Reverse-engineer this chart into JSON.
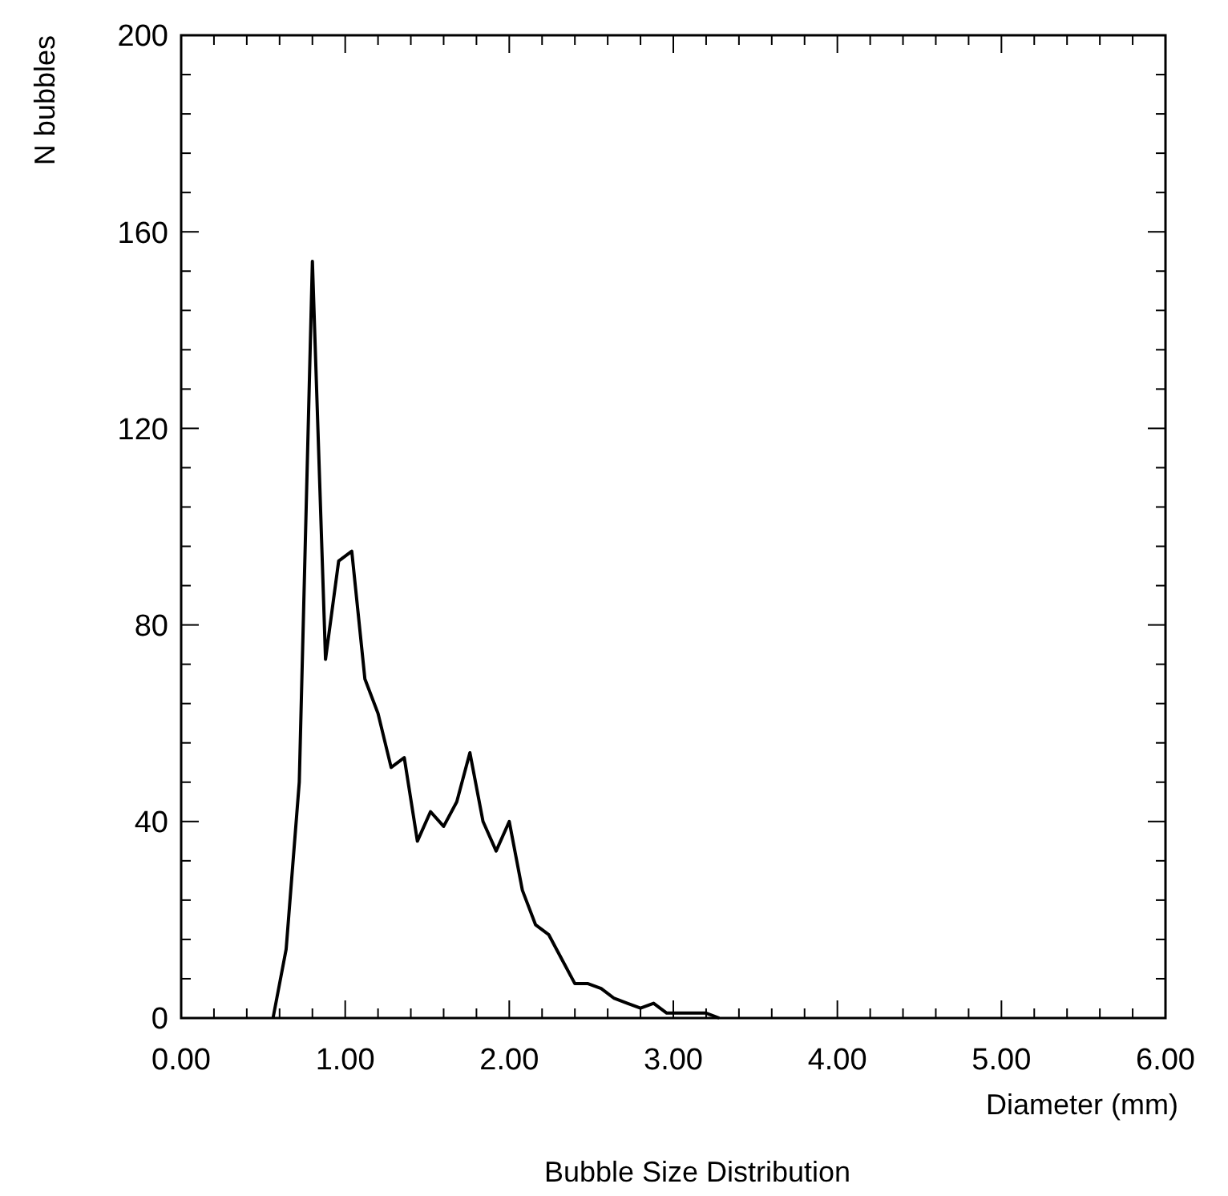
{
  "chart_data": {
    "type": "line",
    "title": "Bubble Size Distribution",
    "xlabel": "Diameter (mm)",
    "ylabel": "N bubbles",
    "x": [
      0.56,
      0.64,
      0.72,
      0.8,
      0.88,
      0.96,
      1.04,
      1.12,
      1.2,
      1.28,
      1.36,
      1.44,
      1.52,
      1.6,
      1.68,
      1.76,
      1.84,
      1.92,
      2.0,
      2.08,
      2.16,
      2.24,
      2.32,
      2.4,
      2.48,
      2.56,
      2.64,
      2.72,
      2.8,
      2.88,
      2.96,
      3.04,
      3.12,
      3.2,
      3.28
    ],
    "series": [
      {
        "color": "#000000",
        "values": [
          0,
          14,
          48,
          154,
          73,
          93,
          95,
          69,
          62,
          51,
          53,
          36,
          42,
          39,
          44,
          54,
          40,
          34,
          40,
          26,
          19,
          17,
          12,
          7,
          7,
          6,
          4,
          3,
          2,
          3,
          1,
          1,
          1,
          1,
          0
        ]
      }
    ],
    "xlim": [
      0,
      6
    ],
    "ylim": [
      0,
      200
    ],
    "xticks": [
      {
        "value": 0,
        "label": "0.00"
      },
      {
        "value": 0.2,
        "label": null
      },
      {
        "value": 0.4,
        "label": null
      },
      {
        "value": 0.6,
        "label": null
      },
      {
        "value": 0.8,
        "label": null
      },
      {
        "value": 1,
        "label": "1.00"
      },
      {
        "value": 1.2,
        "label": null
      },
      {
        "value": 1.4,
        "label": null
      },
      {
        "value": 1.6,
        "label": null
      },
      {
        "value": 1.8,
        "label": null
      },
      {
        "value": 2,
        "label": "2.00"
      },
      {
        "value": 2.2,
        "label": null
      },
      {
        "value": 2.4,
        "label": null
      },
      {
        "value": 2.6,
        "label": null
      },
      {
        "value": 2.8,
        "label": null
      },
      {
        "value": 3,
        "label": "3.00"
      },
      {
        "value": 3.2,
        "label": null
      },
      {
        "value": 3.4,
        "label": null
      },
      {
        "value": 3.6,
        "label": null
      },
      {
        "value": 3.8,
        "label": null
      },
      {
        "value": 4,
        "label": "4.00"
      },
      {
        "value": 4.2,
        "label": null
      },
      {
        "value": 4.4,
        "label": null
      },
      {
        "value": 4.6,
        "label": null
      },
      {
        "value": 4.8,
        "label": null
      },
      {
        "value": 5,
        "label": "5.00"
      },
      {
        "value": 5.2,
        "label": null
      },
      {
        "value": 5.4,
        "label": null
      },
      {
        "value": 5.6,
        "label": null
      },
      {
        "value": 5.8,
        "label": null
      },
      {
        "value": 6,
        "label": "6.00"
      }
    ],
    "yticks": [
      0,
      {
        "value": 8,
        "label": null
      },
      {
        "value": 16,
        "label": null
      },
      {
        "value": 24,
        "label": null
      },
      {
        "value": 32,
        "label": null
      },
      40,
      {
        "value": 48,
        "label": null
      },
      {
        "value": 56,
        "label": null
      },
      {
        "value": 64,
        "label": null
      },
      {
        "value": 72,
        "label": null
      },
      80,
      {
        "value": 88,
        "label": null
      },
      {
        "value": 96,
        "label": null
      },
      {
        "value": 104,
        "label": null
      },
      {
        "value": 112,
        "label": null
      },
      120,
      {
        "value": 128,
        "label": null
      },
      {
        "value": 136,
        "label": null
      },
      {
        "value": 144,
        "label": null
      },
      {
        "value": 152,
        "label": null
      },
      160,
      {
        "value": 168,
        "label": null
      },
      {
        "value": 176,
        "label": null
      },
      {
        "value": 184,
        "label": null
      },
      {
        "value": 192,
        "label": null
      },
      200
    ],
    "grid": false,
    "marker": "none",
    "line_style": "solid"
  }
}
